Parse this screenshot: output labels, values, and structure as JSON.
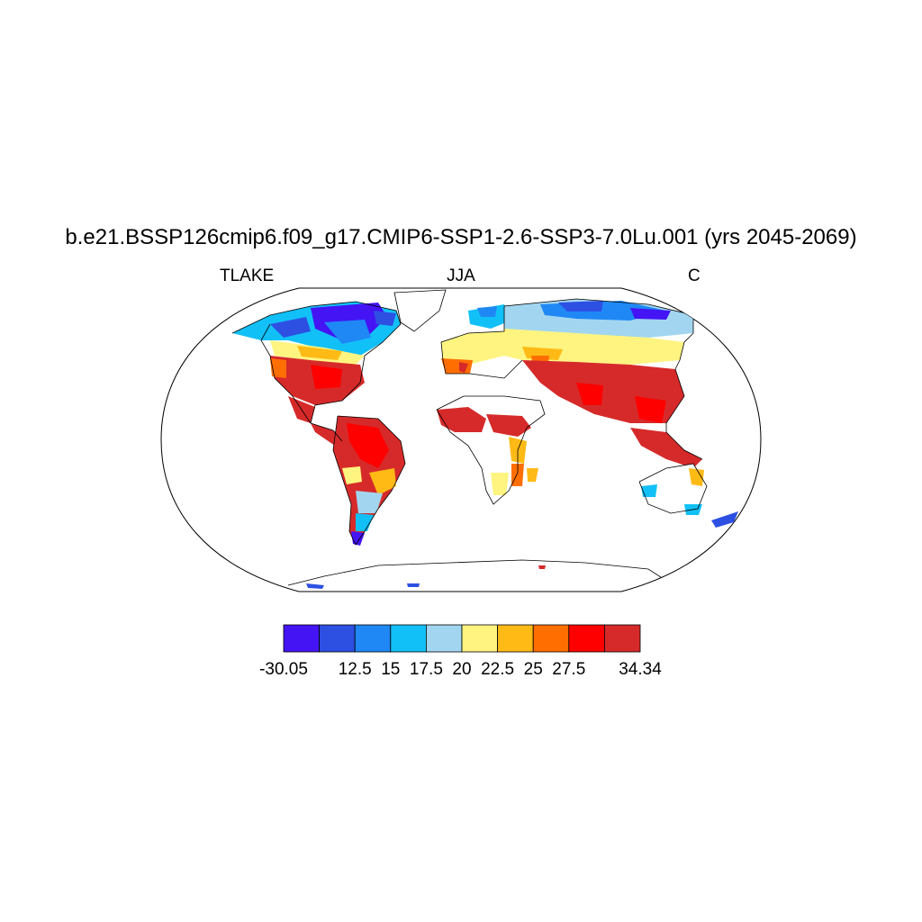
{
  "title": "b.e21.BSSP126cmip6.f09_g17.CMIP6-SSP1-2.6-SSP3-7.0Lu.001 (yrs 2045-2069)",
  "left_label": "TLAKE",
  "center_label": "JJA",
  "right_label": "C",
  "colorbar": {
    "colors": [
      "#4414f5",
      "#2d50e3",
      "#1f88f5",
      "#12c0f8",
      "#a2d6f0",
      "#fff480",
      "#ffba16",
      "#ff6e00",
      "#ff0000",
      "#d62a2a"
    ],
    "labels": [
      "-30.05",
      "",
      "12.5",
      "15",
      "17.5",
      "20",
      "22.5",
      "25",
      "27.5",
      "",
      "34.34"
    ]
  }
}
